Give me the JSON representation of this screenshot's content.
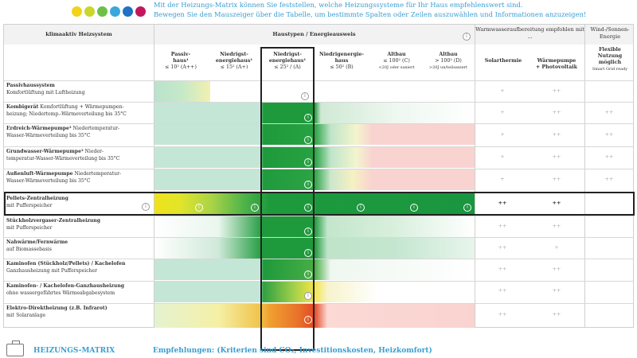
{
  "colors": {
    "dots": [
      "#f2d21b",
      "#d5d82a",
      "#6cc04a",
      "#3a9ed1",
      "#1f72c4",
      "#c2185b"
    ],
    "accent": "#3a9ed1",
    "best": "#1e9a3c",
    "good": "#cfe9d4",
    "neutral": "#fff2b8",
    "bad": "#f9d3d0"
  },
  "intro": {
    "line1": "Mit der Heizungs-Matrix können Sie feststellen, welche Heizungssysteme für Ihr Haus empfehlenswert sind.",
    "line2": "Bewegen Sie den Mauszeiger über die Tabelle, um bestimmte Spalten oder Zeilen auszuwählen und Informationen anzuzeigen!"
  },
  "header": {
    "system_col": "klimaaktiv Heizsystem",
    "group_house": "Haustypen / Energieausweis",
    "group_water": "Warmwasseraufbereitung empfohlen mit ...",
    "group_wind": "Wind-/Sonnen-Energie",
    "cols": [
      {
        "l1": "Passiv-",
        "l2": "haus¹",
        "l3": "≤ 10² (A++)"
      },
      {
        "l1": "Niedrigst-",
        "l2": "energiehaus¹",
        "l3": "≤ 15² (A+)"
      },
      {
        "l1": "Niedrigst-",
        "l2": "energiehaus¹",
        "l3": "≤ 25² / (A)"
      },
      {
        "l1": "Niedrigenergie-",
        "l2": "haus",
        "l3": "≤ 50² (B)"
      },
      {
        "l1": "Altbau",
        "l2": "≤ 100² (C)",
        "l3": "<20J oder saniert"
      },
      {
        "l1": "Altbau",
        "l2": "> 100² (D)",
        "l3": ">20J un/teilsaniert"
      },
      {
        "l1": "Solarthermie",
        "l2": "",
        "l3": ""
      },
      {
        "l1": "Wärmepumpe",
        "l2": "+ Photovoltaik",
        "l3": ""
      },
      {
        "l1": "Flexible",
        "l2": "Nutzung",
        "l3": "möglich",
        "l4": "Smart Grid ready"
      }
    ]
  },
  "rows": [
    {
      "title": "Passivhaussystem",
      "desc": "Komfortlüftung mit Luftheizung",
      "water": [
        "+",
        "++"
      ],
      "wind": ""
    },
    {
      "title": "Kombigerät",
      "desc": " Komfortlüftung + Wärmepumpen-",
      "desc2": "heizung; Niedertemp.-Wärmeverteilung bis 35°C",
      "water": [
        "+",
        "++"
      ],
      "wind": "++"
    },
    {
      "title": "Erdreich-Wärmepumpe³",
      "desc": " Niedertemperatur-",
      "desc2": "Wasser-Wärmeverteilung bis 35°C",
      "water": [
        "+",
        "++"
      ],
      "wind": "++"
    },
    {
      "title": "Grundwasser-Wärmepumpe³",
      "desc": " Nieder-",
      "desc2": "temperatur-Wasser-Wärmeverteilung bis 35°C",
      "water": [
        "+",
        "++"
      ],
      "wind": "++"
    },
    {
      "title": "Außenluft-Wärmepumpe",
      "desc": " Niedertemperatur-",
      "desc2": "Wasser-Wärmeverteilung bis 35°C",
      "water": [
        "+",
        "++"
      ],
      "wind": "++"
    },
    {
      "title": "Pellets-Zentralheizung",
      "desc": "mit Pufferspeicher",
      "water": [
        "++",
        "++"
      ],
      "wind": ""
    },
    {
      "title": "Stückholzvergaser-Zentralheizung",
      "desc": "mit Pufferspeicher",
      "water": [
        "++",
        "++"
      ],
      "wind": ""
    },
    {
      "title": "Nahwärme/Fernwärme",
      "desc": "auf Biomassebasis",
      "water": [
        "++",
        "+"
      ],
      "wind": ""
    },
    {
      "title": "Kaminofen (Stückholz/Pellets) / Kachelofen",
      "desc": "Ganzhausheizung mit Pufferspeicher",
      "water": [
        "++",
        "++"
      ],
      "wind": ""
    },
    {
      "title": "Kaminofen- / Kachelofen-Ganzhausheizung",
      "desc": "ohne wassergeführtes Wärmeabgabesystem",
      "water": [
        "++",
        "++"
      ],
      "wind": ""
    },
    {
      "title": "Elektro-Direktheizung (z.B. Infrarot)",
      "desc": "mit Solaranlage",
      "water": [
        "++",
        "++"
      ],
      "wind": ""
    }
  ],
  "footer": {
    "title": "HEIZUNGS-MATRIX",
    "recommendation": "Empfehlungen: (Kriterien sind CO₂, Investitionskosten, Heizkomfort)"
  }
}
